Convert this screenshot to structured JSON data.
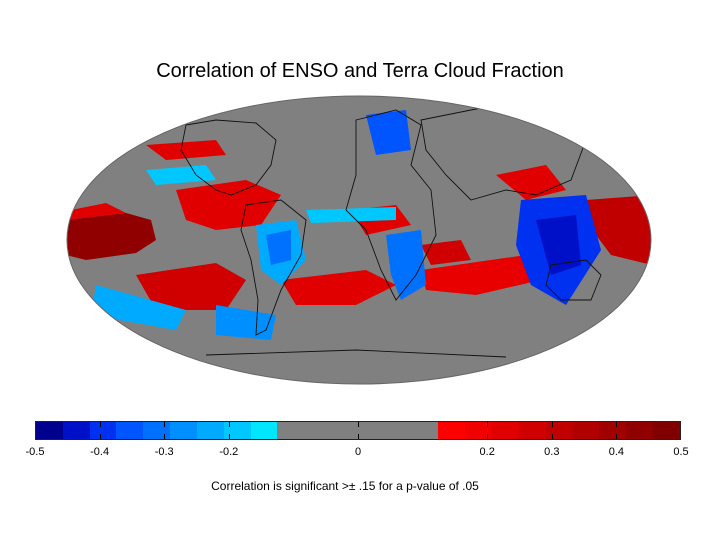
{
  "title": "Correlation of ENSO and Terra Cloud Fraction",
  "note": "Correlation is significant >± .15 for a p-value of .05",
  "colors": {
    "background": "#ffffff",
    "ocean_nonsignificant": "#808080",
    "coast": "#111111"
  },
  "colorbar": {
    "range": [
      -0.5,
      0.5
    ],
    "tick_labels": [
      "-0.5",
      "-0.4",
      "-0.3",
      "-0.2",
      "0",
      "0.2",
      "0.3",
      "0.4",
      "0.5"
    ],
    "tick_values": [
      -0.5,
      -0.4,
      -0.3,
      -0.2,
      0,
      0.2,
      0.3,
      0.4,
      0.5
    ],
    "colors": [
      "#00008f",
      "#0010c8",
      "#0030f0",
      "#0055ff",
      "#0070ff",
      "#008fff",
      "#00aaff",
      "#00c8ff",
      "#00e6ff",
      "#808080",
      "#808080",
      "#808080",
      "#808080",
      "#808080",
      "#808080",
      "#ff0000",
      "#f00000",
      "#e00000",
      "#d00000",
      "#c00000",
      "#b00000",
      "#a00000",
      "#900000",
      "#800000"
    ]
  }
}
